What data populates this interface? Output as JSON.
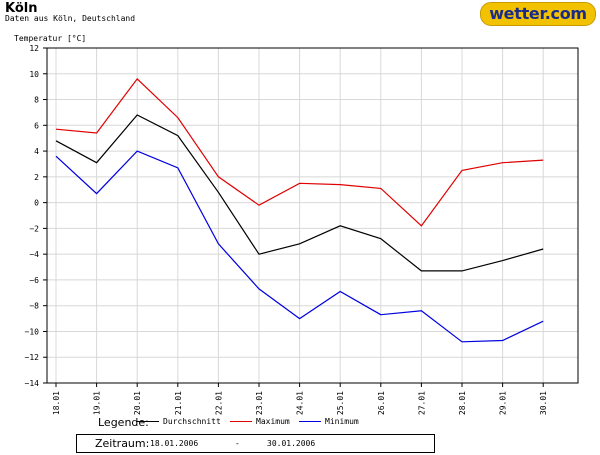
{
  "header": {
    "title": "Köln",
    "subtitle": "Daten aus Köln, Deutschland",
    "logo_text": "wetter.com"
  },
  "legend": {
    "label": "Legende:",
    "items": [
      {
        "name": "Durchschnitt",
        "color": "#000000"
      },
      {
        "name": "Maximum",
        "color": "#e00000"
      },
      {
        "name": "Minimum",
        "color": "#0000e0"
      }
    ]
  },
  "period": {
    "label": "Zeitraum:",
    "from": "18.01.2006",
    "separator": "-",
    "to": "30.01.2006"
  },
  "chart_data": {
    "type": "line",
    "ylabel": "Temperatur [°C]",
    "xlabel": "",
    "ylim": [
      -14,
      12
    ],
    "yticks": [
      -14,
      -12,
      -10,
      -8,
      -6,
      -4,
      -2,
      0,
      2,
      4,
      6,
      8,
      10,
      12
    ],
    "grid": true,
    "categories": [
      "18.01",
      "19.01",
      "20.01",
      "21.01",
      "22.01",
      "23.01",
      "24.01",
      "25.01",
      "26.01",
      "27.01",
      "28.01",
      "29.01",
      "30.01"
    ],
    "series": [
      {
        "name": "Durchschnitt",
        "color": "#000000",
        "values": [
          4.8,
          3.1,
          6.8,
          5.2,
          0.8,
          -4.0,
          -3.2,
          -1.8,
          -2.8,
          -5.3,
          -5.3,
          -4.5,
          -3.6
        ]
      },
      {
        "name": "Maximum",
        "color": "#e00000",
        "values": [
          5.7,
          5.4,
          9.6,
          6.6,
          2.0,
          -0.2,
          1.5,
          1.4,
          1.1,
          -1.8,
          2.5,
          3.1,
          3.3
        ]
      },
      {
        "name": "Minimum",
        "color": "#0000e0",
        "values": [
          3.6,
          0.7,
          4.0,
          2.7,
          -3.2,
          -6.7,
          -9.0,
          -6.9,
          -8.7,
          -8.4,
          -10.8,
          -10.7,
          -9.2
        ]
      }
    ]
  }
}
